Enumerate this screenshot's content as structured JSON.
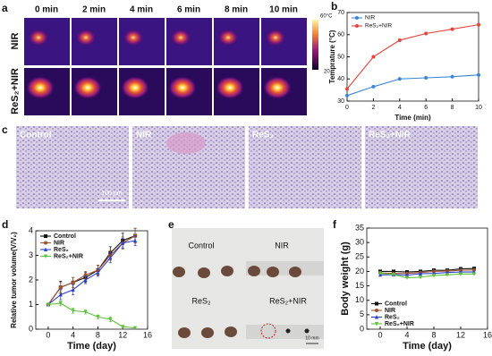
{
  "panel_labels": [
    "a",
    "b",
    "c",
    "d",
    "e",
    "f"
  ],
  "thermal": {
    "times": [
      "0 min",
      "2 min",
      "4 min",
      "6 min",
      "8 min",
      "10 min"
    ],
    "rows": [
      "NIR",
      "ReS₂+NIR"
    ],
    "scale_max": "60°C",
    "scale_min": "20"
  },
  "histology": {
    "labels": [
      "Control",
      "NIR",
      "ReS₂",
      "ReS₂+NIR"
    ],
    "scale_bar": "100 μm"
  },
  "photo": {
    "labels": [
      "Control",
      "NIR",
      "ReS₂",
      "ReS₂+NIR"
    ],
    "scale_bar": "10 mm"
  },
  "chart_data": [
    {
      "type": "line",
      "xlabel": "Time (min)",
      "ylabel": "Temprature (°C)",
      "legend": "upper left",
      "x": [
        0,
        2,
        4,
        6,
        8,
        10
      ],
      "xlim": [
        0,
        10
      ],
      "xticks": [
        0,
        2,
        4,
        6,
        8,
        10
      ],
      "ylim": [
        30,
        70
      ],
      "yticks": [
        30,
        40,
        50,
        60,
        70
      ],
      "series": [
        {
          "name": "NIR",
          "color": "#3a86d8",
          "values": [
            32.5,
            36.5,
            40,
            40.5,
            41,
            41.8
          ]
        },
        {
          "name": "ReS₂+NIR",
          "color": "#e8403a",
          "values": [
            35.5,
            50,
            57.5,
            60.5,
            62.5,
            64.5
          ]
        }
      ]
    },
    {
      "type": "line",
      "xlabel": "Time (day)",
      "ylabel": "Relative tumor volume(V/V₀)",
      "legend": "upper left",
      "x": [
        0,
        2,
        4,
        6,
        8,
        10,
        12,
        14
      ],
      "xlim": [
        -2,
        16
      ],
      "xticks": [
        0,
        4,
        8,
        12,
        16
      ],
      "ylim": [
        0,
        4
      ],
      "yticks": [
        0,
        1,
        2,
        3,
        4
      ],
      "series": [
        {
          "name": "Control",
          "color": "#111111",
          "values": [
            1,
            1.7,
            1.9,
            2.1,
            2.4,
            3.1,
            3.6,
            3.8
          ],
          "errors": [
            0.05,
            0.25,
            0.2,
            0.2,
            0.2,
            0.25,
            0.3,
            0.3
          ]
        },
        {
          "name": "NIR",
          "color": "#a0522d",
          "values": [
            1,
            1.7,
            1.9,
            2.2,
            2.4,
            3.0,
            3.5,
            3.8
          ],
          "errors": [
            0.05,
            0.2,
            0.2,
            0.15,
            0.2,
            0.2,
            0.25,
            0.3
          ]
        },
        {
          "name": "ReS₂",
          "color": "#2b3fd4",
          "values": [
            1,
            1.4,
            1.6,
            2.0,
            2.3,
            2.9,
            3.5,
            3.6
          ],
          "errors": [
            0.05,
            0.2,
            0.2,
            0.15,
            0.15,
            0.2,
            0.2,
            0.2
          ]
        },
        {
          "name": "ReS₂+NIR",
          "color": "#5cc23a",
          "values": [
            1,
            1.05,
            0.75,
            0.7,
            0.5,
            0.4,
            0.1,
            0.05
          ],
          "errors": [
            0.05,
            0.1,
            0.1,
            0.08,
            0.08,
            0.1,
            0.05,
            0.03
          ]
        }
      ]
    },
    {
      "type": "line",
      "xlabel": "Time (day)",
      "ylabel": "Body weight (g)",
      "legend": "lower left",
      "x": [
        0,
        2,
        4,
        6,
        8,
        10,
        12,
        14
      ],
      "xlim": [
        -2,
        16
      ],
      "xticks": [
        0,
        4,
        8,
        12,
        16
      ],
      "ylim": [
        0,
        35
      ],
      "yticks": [
        0,
        5,
        10,
        15,
        20,
        25,
        30,
        35
      ],
      "series": [
        {
          "name": "Control",
          "color": "#111111",
          "values": [
            20,
            20,
            19.8,
            20,
            20.4,
            20.4,
            20.9,
            21
          ]
        },
        {
          "name": "NIR",
          "color": "#a0522d",
          "values": [
            19.5,
            19.3,
            19.3,
            19.6,
            20,
            20.1,
            20.4,
            20.5
          ]
        },
        {
          "name": "ReS₂",
          "color": "#2b3fd4",
          "values": [
            18.8,
            18.9,
            18.7,
            19.2,
            19.3,
            19.6,
            19.8,
            19.8
          ]
        },
        {
          "name": "ReS₂+NIR",
          "color": "#5cc23a",
          "values": [
            19.4,
            18.9,
            17.8,
            18,
            18.6,
            18.8,
            19.1,
            19.1
          ]
        }
      ]
    }
  ]
}
